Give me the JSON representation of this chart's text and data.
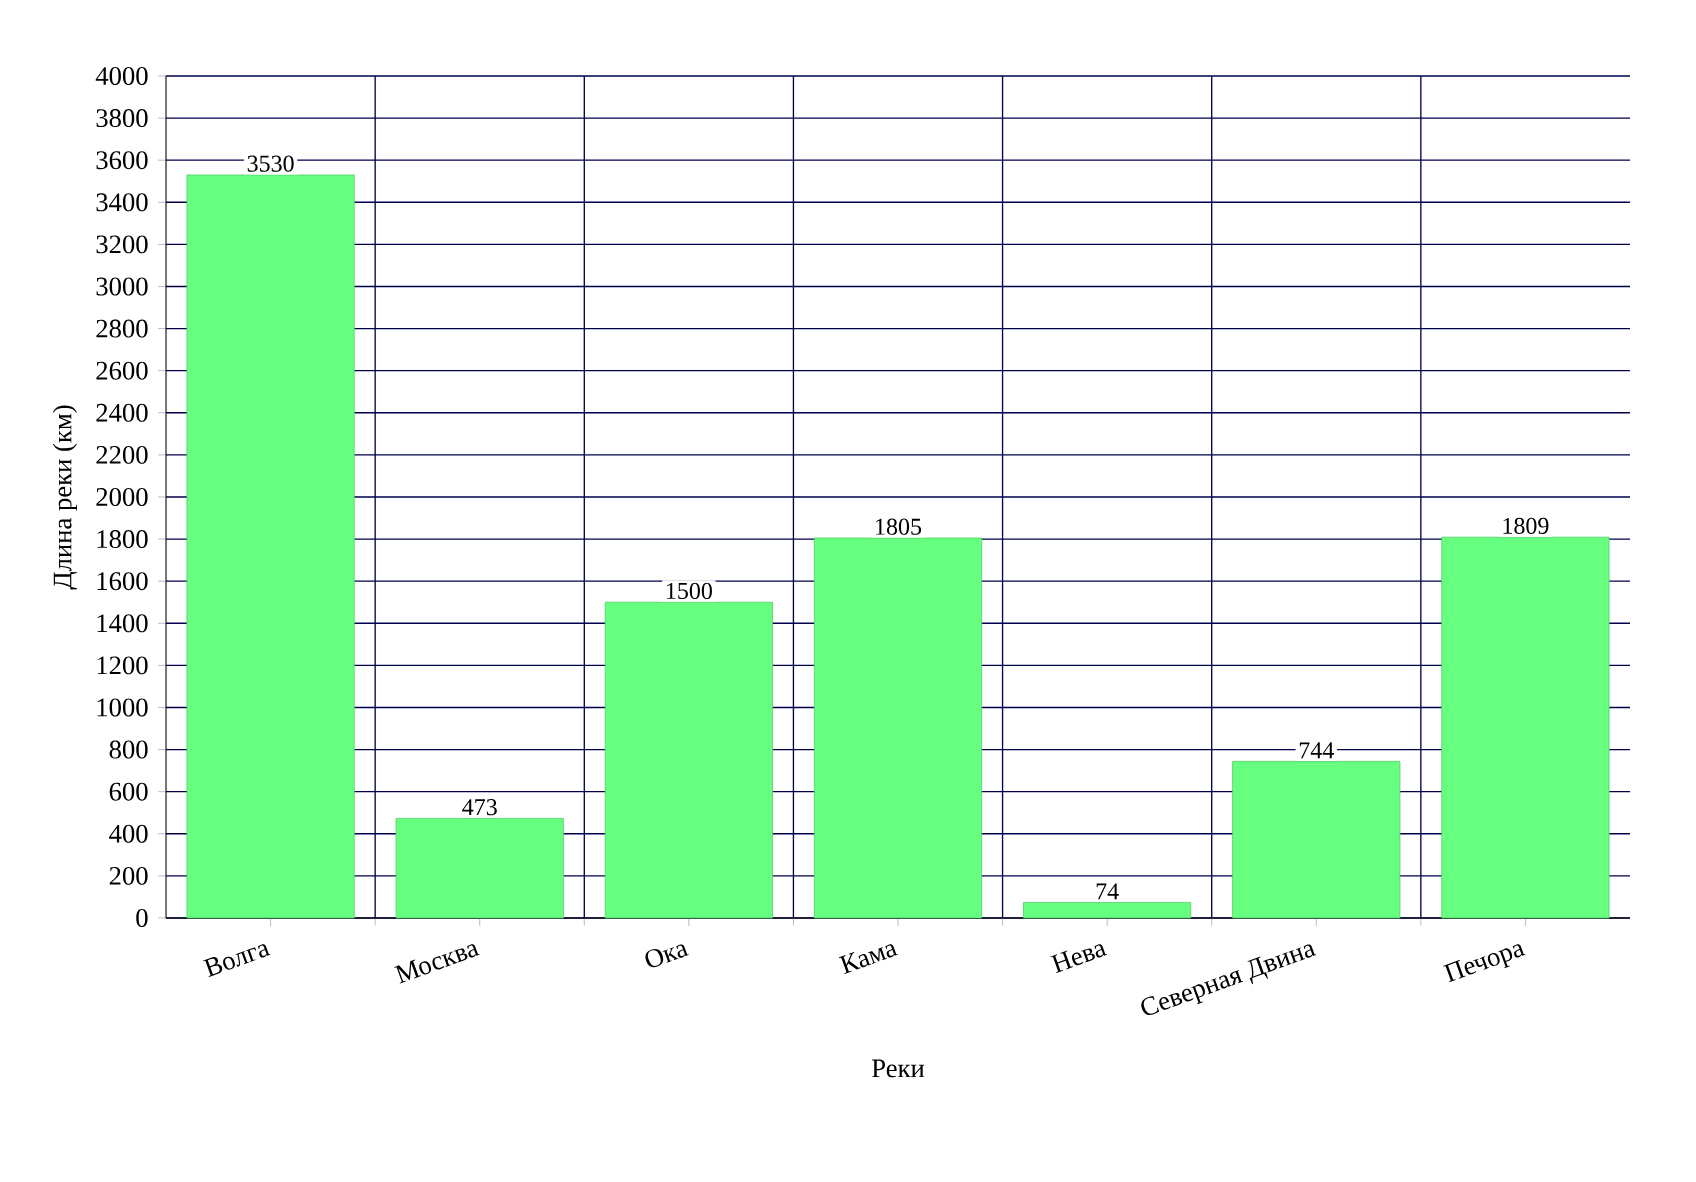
{
  "chart_data": {
    "type": "bar",
    "xlabel": "Реки",
    "ylabel": "Длина реки (км)",
    "categories": [
      "Волга",
      "Москва",
      "Ока",
      "Кама",
      "Нева",
      "Северная Двина",
      "Печора"
    ],
    "values": [
      3530,
      473,
      1500,
      1805,
      74,
      744,
      1809
    ],
    "color": "#66ff80",
    "ylim": [
      0,
      4000
    ],
    "yticks": [
      0,
      200,
      400,
      600,
      800,
      1000,
      1200,
      1400,
      1600,
      1800,
      2000,
      2200,
      2400,
      2600,
      2800,
      3000,
      3200,
      3400,
      3600,
      3800,
      4000
    ],
    "grid": true,
    "data_labels": true
  }
}
